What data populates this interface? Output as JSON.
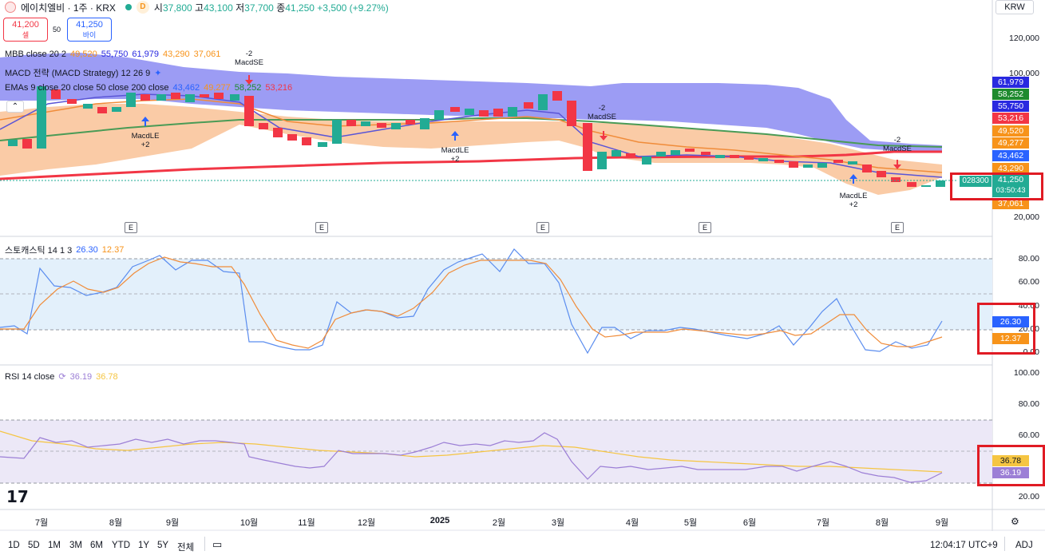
{
  "header": {
    "symbol": "에이치엘비 · 1주 · KRX",
    "d_badge": "D",
    "open_label": "시",
    "open": "37,800",
    "high_label": "고",
    "high": "43,100",
    "low_label": "저",
    "low": "37,700",
    "close_label": "종",
    "close": "41,250",
    "change": "+3,500 (+9.27%)",
    "currency": "KRW"
  },
  "trade": {
    "sell_price": "41,200",
    "sell_label": "셀",
    "spread": "50",
    "buy_price": "41,250",
    "buy_label": "바이"
  },
  "legends": {
    "mbb": {
      "name": "MBB close 20 2",
      "v1": "49,520",
      "v2": "55,750",
      "v3": "61,979",
      "v4": "43,290",
      "v5": "37,061"
    },
    "macd": {
      "name": "MACD 전략 (MACD Strategy) 12 26 9"
    },
    "emas": {
      "name": "EMAs 9 close 20 close 50 close 200 close",
      "v1": "43,462",
      "v2": "49,277",
      "v3": "58,252",
      "v4": "53,216"
    },
    "stoch": {
      "name": "스토캐스틱 14 1 3",
      "k": "26.30",
      "d": "12.37"
    },
    "rsi": {
      "name": "RSI 14 close",
      "rsi": "36.19",
      "ma": "36.78"
    }
  },
  "price_axis": [
    "120,000",
    "100,000",
    "20,000"
  ],
  "price_tags": [
    {
      "label": "61,979",
      "color": "#2929e0"
    },
    {
      "label": "58,252",
      "color": "#1e8a2e"
    },
    {
      "label": "55,750",
      "color": "#2929e0"
    },
    {
      "label": "53,216",
      "color": "#f23645"
    },
    {
      "label": "49,520",
      "color": "#f7931a"
    },
    {
      "label": "49,277",
      "color": "#f7931a"
    },
    {
      "label": "43,462",
      "color": "#2962ff"
    },
    {
      "label": "43,290",
      "color": "#f7931a"
    },
    {
      "label": "41,250",
      "color": "#22ab94"
    },
    {
      "label": "37,061",
      "color": "#f7931a"
    }
  ],
  "last_price": {
    "code": "028300",
    "price": "41,250",
    "countdown": "03:50:43"
  },
  "stoch_axis": [
    "80.00",
    "60.00",
    "40.00",
    "20.00",
    "0.00"
  ],
  "stoch_tags": {
    "k": "26.30",
    "d": "12.37"
  },
  "rsi_axis": [
    "100.00",
    "80.00",
    "60.00",
    "20.00"
  ],
  "rsi_tags": {
    "ma": "36.78",
    "rsi": "36.19"
  },
  "x_axis": [
    "7월",
    "8월",
    "9월",
    "10월",
    "11월",
    "12월",
    "2025",
    "2월",
    "3월",
    "4월",
    "5월",
    "6월",
    "7월",
    "8월",
    "9월"
  ],
  "earnings_marker": "E",
  "signals": [
    {
      "text": "MacdLE",
      "sub": "+2"
    },
    {
      "text": "MacdSE",
      "sub": "-2"
    },
    {
      "text": "MacdLE",
      "sub": "+2"
    },
    {
      "text": "MacdSE",
      "sub": "-2"
    },
    {
      "text": "MacdSE",
      "sub": "-2"
    },
    {
      "text": "MacdLE",
      "sub": "+2"
    }
  ],
  "timeframes": [
    "1D",
    "5D",
    "1M",
    "3M",
    "6M",
    "YTD",
    "1Y",
    "5Y",
    "전체"
  ],
  "footer": {
    "clock": "12:04:17 UTC+9",
    "adj": "ADJ"
  },
  "watermark": "17",
  "colors": {
    "up": "#22ab94",
    "down": "#f23645",
    "bb_fill": "#7b7bf0",
    "k": "#5b8def",
    "d": "#f7931a",
    "rsi": "#9c7fd6",
    "rsi_ma": "#f5c542"
  }
}
